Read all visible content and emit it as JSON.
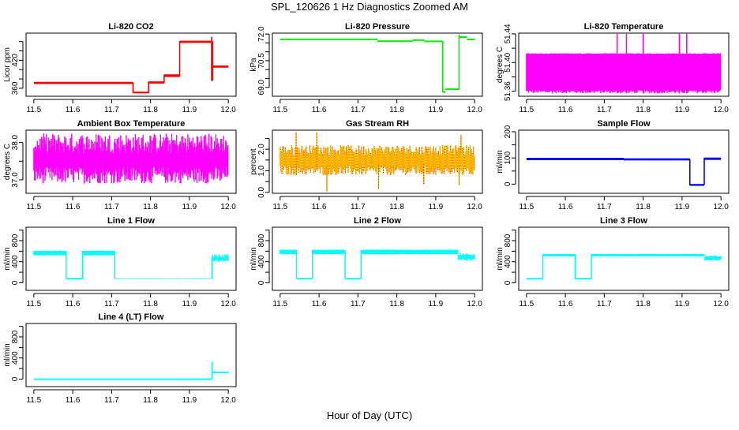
{
  "chart_data": {
    "title": "SPL_120626  1 Hz Diagnostics Zoomed AM",
    "xlabel": "Hour of Day (UTC)",
    "panels": [
      {
        "title": "Li-820 CO2",
        "ylabel": "Licor ppm",
        "type": "line",
        "color": "#ff0000",
        "xlim": [
          11.48,
          12.02
        ],
        "ylim": [
          343,
          478
        ],
        "yticks": [
          360,
          380,
          400,
          420,
          440,
          460
        ],
        "ylabels": [
          "360",
          "420"
        ],
        "segments": [
          {
            "x": [
              11.5,
              11.755
            ],
            "lo": [
              370,
              370
            ],
            "hi": [
              373,
              373
            ]
          },
          {
            "x": [
              11.755,
              11.795
            ],
            "lo": [
              350,
              350
            ],
            "hi": [
              352,
              352
            ]
          },
          {
            "x": [
              11.795,
              11.835
            ],
            "lo": [
              371,
              371
            ],
            "hi": [
              374,
              374
            ]
          },
          {
            "x": [
              11.835,
              11.875
            ],
            "lo": [
              385,
              385
            ],
            "hi": [
              389,
              389
            ]
          },
          {
            "x": [
              11.875,
              11.957
            ],
            "lo": [
              458,
              458
            ],
            "hi": [
              461,
              461
            ]
          },
          {
            "x": [
              11.957,
              12.0
            ],
            "lo": [
              405,
              405
            ],
            "hi": [
              408,
              408
            ]
          }
        ],
        "spikes": [
          [
            11.755,
            350,
            372
          ],
          [
            11.795,
            350,
            374
          ],
          [
            11.835,
            371,
            389
          ],
          [
            11.875,
            385,
            461
          ],
          [
            11.957,
            376,
            470
          ],
          [
            11.96,
            376,
            461
          ]
        ]
      },
      {
        "title": "Li-820 Pressure",
        "ylabel": "kPa",
        "type": "line",
        "color": "#00ee00",
        "xlim": [
          11.48,
          12.02
        ],
        "ylim": [
          68.5,
          72.05
        ],
        "yticks": [
          69.0,
          69.5,
          70.0,
          70.5,
          71.0,
          71.5,
          72.0
        ],
        "ylabels": [
          "69.0",
          "70.5",
          "72.0"
        ],
        "segments": [
          {
            "x": [
              11.5,
              11.75
            ],
            "lo": [
              71.68,
              71.68
            ],
            "hi": [
              71.72,
              71.72
            ]
          },
          {
            "x": [
              11.75,
              11.84
            ],
            "lo": [
              71.58,
              71.58
            ],
            "hi": [
              71.62,
              71.62
            ]
          },
          {
            "x": [
              11.84,
              11.87
            ],
            "lo": [
              71.64,
              71.64
            ],
            "hi": [
              71.68,
              71.68
            ]
          },
          {
            "x": [
              11.87,
              11.918
            ],
            "lo": [
              71.58,
              71.58
            ],
            "hi": [
              71.61,
              71.61
            ]
          },
          {
            "x": [
              11.918,
              11.925
            ],
            "lo": [
              68.72,
              68.72
            ],
            "hi": [
              68.76,
              68.76
            ]
          },
          {
            "x": [
              11.925,
              11.96
            ],
            "lo": [
              68.88,
              68.88
            ],
            "hi": [
              68.92,
              68.92
            ]
          },
          {
            "x": [
              11.96,
              11.98
            ],
            "lo": [
              71.8,
              71.8
            ],
            "hi": [
              71.85,
              71.85
            ]
          },
          {
            "x": [
              11.98,
              12.0
            ],
            "lo": [
              71.68,
              71.68
            ],
            "hi": [
              71.72,
              71.72
            ]
          }
        ],
        "spikes": [
          [
            11.918,
            68.72,
            71.6
          ],
          [
            11.96,
            68.9,
            71.98
          ]
        ]
      },
      {
        "title": "Li-820 Temperature",
        "ylabel": "degrees C",
        "type": "band",
        "color": "#ff00ff",
        "xlim": [
          11.48,
          12.02
        ],
        "ylim": [
          51.353,
          51.441
        ],
        "yticks": [
          51.36,
          51.38,
          51.4,
          51.42,
          51.44
        ],
        "ylabels": [
          "51.36",
          "51.40",
          "51.44"
        ],
        "segments": [
          {
            "x": [
              11.5,
              12.0
            ],
            "lo": [
              51.357,
              51.362
            ],
            "hi": [
              51.412,
              51.413
            ]
          }
        ],
        "spikes": [
          [
            11.733,
            51.357,
            51.44
          ],
          [
            11.757,
            51.357,
            51.44
          ],
          [
            11.8,
            51.357,
            51.44
          ],
          [
            11.893,
            51.357,
            51.44
          ],
          [
            11.912,
            51.357,
            51.44
          ]
        ]
      },
      {
        "title": "Ambient Box Temperature",
        "ylabel": "degrees C",
        "type": "band",
        "color": "#ff00ff",
        "xlim": [
          11.48,
          12.02
        ],
        "ylim": [
          36.64,
          38.33
        ],
        "yticks": [
          37.0,
          37.5,
          38.0
        ],
        "ylabels": [
          "37.0",
          "38.0"
        ],
        "segments": [
          {
            "x": [
              11.5,
              12.0
            ],
            "lo": [
              36.9,
              37.35
            ],
            "hi": [
              37.7,
              38.25
            ]
          }
        ],
        "spikes": []
      },
      {
        "title": "Gas Stream RH",
        "ylabel": "percent",
        "type": "rh",
        "color": "#ffdd00",
        "color2": "#ff0000",
        "xlim": [
          11.48,
          12.02
        ],
        "ylim": [
          -0.04,
          2.88
        ],
        "yticks": [
          0.0,
          0.5,
          1.0,
          1.5,
          2.0,
          2.5
        ],
        "ylabels": [
          "0.0",
          "1.0",
          "2.0"
        ],
        "segments": [
          {
            "x": [
              11.5,
              12.0
            ],
            "lo": [
              0.8,
              1.25
            ],
            "hi": [
              1.7,
              2.2
            ]
          }
        ],
        "spikes": [
          [
            11.541,
            1.2,
            2.8
          ],
          [
            11.594,
            1.2,
            2.8
          ],
          [
            11.62,
            0.05,
            1.3
          ],
          [
            11.753,
            0.15,
            1.3
          ],
          [
            11.869,
            0.4,
            1.3
          ],
          [
            11.965,
            2.65,
            1.8
          ],
          [
            11.96,
            0.35,
            1.3
          ]
        ]
      },
      {
        "title": "Sample Flow",
        "ylabel": "ml/min",
        "type": "line",
        "color": "#0000ff",
        "xlim": [
          11.48,
          12.02
        ],
        "ylim": [
          -35,
          206
        ],
        "yticks": [
          0,
          50,
          100,
          150,
          200
        ],
        "ylabels": [
          "0",
          "100",
          "200"
        ],
        "segments": [
          {
            "x": [
              11.5,
              11.75
            ],
            "lo": [
              93,
              93
            ],
            "hi": [
              99,
              99
            ]
          },
          {
            "x": [
              11.75,
              11.92
            ],
            "lo": [
              92,
              92
            ],
            "hi": [
              97,
              97
            ]
          },
          {
            "x": [
              11.92,
              11.957
            ],
            "lo": [
              -5,
              -5
            ],
            "hi": [
              -1,
              -1
            ]
          },
          {
            "x": [
              11.957,
              12.0
            ],
            "lo": [
              94,
              94
            ],
            "hi": [
              100,
              100
            ]
          }
        ],
        "spikes": [
          [
            11.92,
            -5,
            95
          ],
          [
            11.957,
            -3,
            100
          ]
        ]
      },
      {
        "title": "Line 1 Flow",
        "ylabel": "ml/min",
        "type": "band",
        "color": "#00ffff",
        "xlim": [
          11.48,
          12.02
        ],
        "ylim": [
          -143,
          1054
        ],
        "yticks": [
          0,
          200,
          400,
          600,
          800,
          1000
        ],
        "ylabels": [
          "0",
          "400",
          "800"
        ],
        "segments": [
          {
            "x": [
              11.5,
              11.583
            ],
            "lo": [
              520,
              530
            ],
            "hi": [
              600,
              610
            ]
          },
          {
            "x": [
              11.583,
              11.625
            ],
            "lo": [
              78,
              78
            ],
            "hi": [
              85,
              85
            ]
          },
          {
            "x": [
              11.625,
              11.708
            ],
            "lo": [
              520,
              530
            ],
            "hi": [
              600,
              610
            ]
          },
          {
            "x": [
              11.708,
              11.958
            ],
            "lo": [
              75,
              78
            ],
            "hi": [
              82,
              88
            ]
          },
          {
            "x": [
              11.958,
              12.0
            ],
            "lo": [
              400,
              450
            ],
            "hi": [
              480,
              540
            ]
          }
        ],
        "spikes": [
          [
            11.583,
            80,
            600
          ],
          [
            11.625,
            80,
            600
          ],
          [
            11.708,
            80,
            600
          ],
          [
            11.958,
            80,
            450
          ]
        ]
      },
      {
        "title": "Line 2 Flow",
        "ylabel": "ml/min",
        "type": "band",
        "color": "#00ffff",
        "xlim": [
          11.48,
          12.02
        ],
        "ylim": [
          -143,
          1054
        ],
        "yticks": [
          0,
          200,
          400,
          600,
          800,
          1000
        ],
        "ylabels": [
          "0",
          "400",
          "800"
        ],
        "segments": [
          {
            "x": [
              11.5,
              11.542
            ],
            "lo": [
              540,
              550
            ],
            "hi": [
              620,
              630
            ]
          },
          {
            "x": [
              11.542,
              11.583
            ],
            "lo": [
              78,
              78
            ],
            "hi": [
              85,
              85
            ]
          },
          {
            "x": [
              11.583,
              11.667
            ],
            "lo": [
              540,
              550
            ],
            "hi": [
              620,
              630
            ]
          },
          {
            "x": [
              11.667,
              11.708
            ],
            "lo": [
              78,
              78
            ],
            "hi": [
              85,
              85
            ]
          },
          {
            "x": [
              11.708,
              11.958
            ],
            "lo": [
              540,
              550
            ],
            "hi": [
              620,
              630
            ]
          },
          {
            "x": [
              11.958,
              12.0
            ],
            "lo": [
              420,
              460
            ],
            "hi": [
              500,
              560
            ]
          }
        ],
        "spikes": [
          [
            11.542,
            80,
            600
          ],
          [
            11.583,
            80,
            600
          ],
          [
            11.667,
            80,
            600
          ],
          [
            11.708,
            80,
            600
          ]
        ]
      },
      {
        "title": "Line 3 Flow",
        "ylabel": "ml/min",
        "type": "band",
        "color": "#00ffff",
        "xlim": [
          11.48,
          12.02
        ],
        "ylim": [
          -143,
          1054
        ],
        "yticks": [
          0,
          200,
          400,
          600,
          800,
          1000
        ],
        "ylabels": [
          "0",
          "400",
          "800"
        ],
        "segments": [
          {
            "x": [
              11.5,
              11.542
            ],
            "lo": [
              78,
              78
            ],
            "hi": [
              85,
              85
            ]
          },
          {
            "x": [
              11.542,
              11.625
            ],
            "lo": [
              500,
              505
            ],
            "hi": [
              540,
              550
            ]
          },
          {
            "x": [
              11.625,
              11.667
            ],
            "lo": [
              78,
              78
            ],
            "hi": [
              85,
              85
            ]
          },
          {
            "x": [
              11.667,
              11.958
            ],
            "lo": [
              500,
              505
            ],
            "hi": [
              540,
              550
            ]
          },
          {
            "x": [
              11.958,
              12.0
            ],
            "lo": [
              420,
              450
            ],
            "hi": [
              490,
              520
            ]
          }
        ],
        "spikes": [
          [
            11.542,
            80,
            540
          ],
          [
            11.625,
            80,
            540
          ],
          [
            11.667,
            80,
            540
          ]
        ]
      },
      {
        "title": "Line 4 (LT) Flow",
        "ylabel": "ml/min",
        "type": "line",
        "color": "#00ffff",
        "xlim": [
          11.48,
          12.02
        ],
        "ylim": [
          -143,
          1054
        ],
        "yticks": [
          0,
          200,
          400,
          600,
          800,
          1000
        ],
        "ylabels": [
          "0",
          "400",
          "800"
        ],
        "segments": [
          {
            "x": [
              11.5,
              11.958
            ],
            "lo": [
              0,
              0
            ],
            "hi": [
              4,
              4
            ]
          },
          {
            "x": [
              11.958,
              12.0
            ],
            "lo": [
              125,
              125
            ],
            "hi": [
              135,
              135
            ]
          }
        ],
        "spikes": [
          [
            11.958,
            0,
            330
          ]
        ]
      }
    ],
    "xticks": [
      11.5,
      11.6,
      11.7,
      11.8,
      11.9,
      12.0
    ],
    "xticklabels": [
      "11.5",
      "11.6",
      "11.7",
      "11.8",
      "11.9",
      "12.0"
    ]
  }
}
